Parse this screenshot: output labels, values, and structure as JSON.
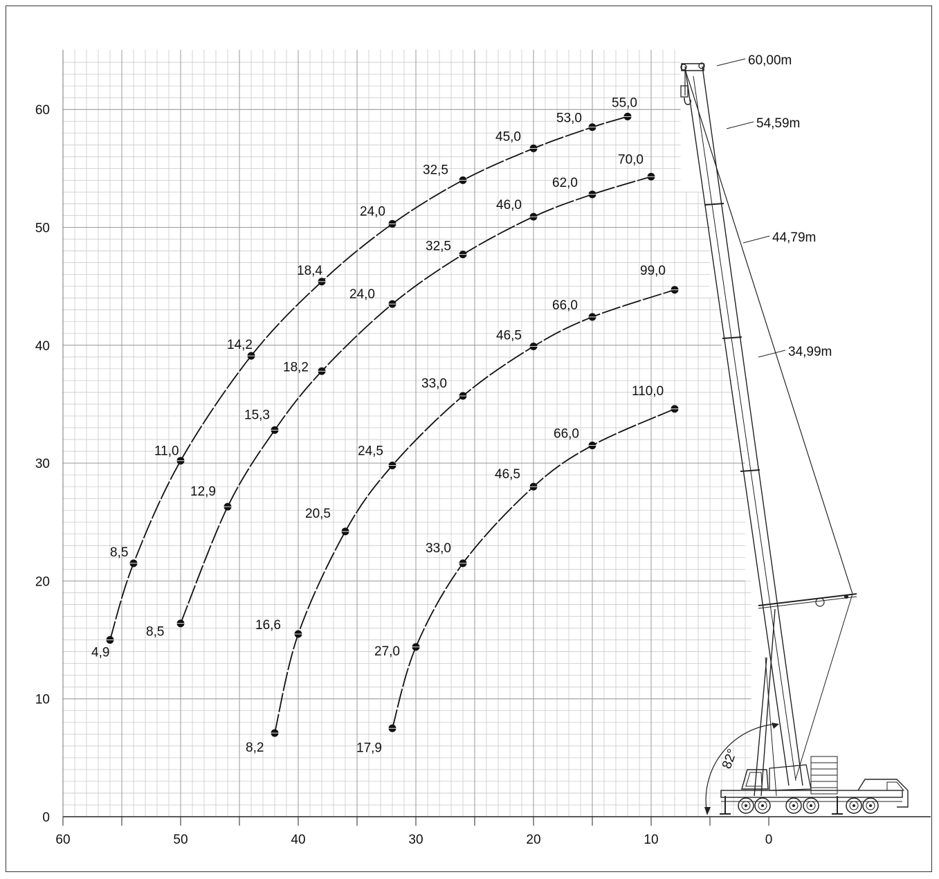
{
  "chart_data": {
    "type": "line",
    "title": "",
    "xlabel": "",
    "ylabel": "",
    "x_reversed": true,
    "xlim": [
      60,
      -1
    ],
    "ylim": [
      0,
      64
    ],
    "x_ticks": [
      "60",
      "50",
      "40",
      "30",
      "20",
      "10",
      "0"
    ],
    "y_ticks": [
      "0",
      "10",
      "20",
      "30",
      "40",
      "50",
      "60"
    ],
    "grid": true,
    "series": [
      {
        "boom_length": "60,00m",
        "points": [
          {
            "x": 56,
            "y": 15.0,
            "label": "4,9"
          },
          {
            "x": 54,
            "y": 21.5,
            "label": "8,5"
          },
          {
            "x": 50,
            "y": 30.2,
            "label": "11,0"
          },
          {
            "x": 44,
            "y": 39.1,
            "label": "14,2"
          },
          {
            "x": 38,
            "y": 45.4,
            "label": "18,4"
          },
          {
            "x": 32,
            "y": 50.3,
            "label": "24,0"
          },
          {
            "x": 26,
            "y": 54.0,
            "label": "32,5"
          },
          {
            "x": 20,
            "y": 56.7,
            "label": "45,0"
          },
          {
            "x": 15,
            "y": 58.5,
            "label": "53,0"
          },
          {
            "x": 12,
            "y": 59.4,
            "label": "55,0"
          }
        ]
      },
      {
        "boom_length": "54,59m",
        "points": [
          {
            "x": 50,
            "y": 16.4,
            "label": "8,5"
          },
          {
            "x": 46,
            "y": 26.3,
            "label": "12,9"
          },
          {
            "x": 42,
            "y": 32.8,
            "label": "15,3"
          },
          {
            "x": 38,
            "y": 37.8,
            "label": "18,2"
          },
          {
            "x": 32,
            "y": 43.5,
            "label": "24,0"
          },
          {
            "x": 26,
            "y": 47.7,
            "label": "32,5"
          },
          {
            "x": 20,
            "y": 50.9,
            "label": "46,0"
          },
          {
            "x": 15,
            "y": 52.8,
            "label": "62,0"
          },
          {
            "x": 10,
            "y": 54.3,
            "label": "70,0"
          }
        ]
      },
      {
        "boom_length": "44,79m",
        "points": [
          {
            "x": 42,
            "y": 7.1,
            "label": "8,2"
          },
          {
            "x": 40,
            "y": 15.5,
            "label": "16,6"
          },
          {
            "x": 36,
            "y": 24.2,
            "label": "20,5"
          },
          {
            "x": 32,
            "y": 29.8,
            "label": "24,5"
          },
          {
            "x": 26,
            "y": 35.7,
            "label": "33,0"
          },
          {
            "x": 20,
            "y": 39.9,
            "label": "46,5"
          },
          {
            "x": 15,
            "y": 42.4,
            "label": "66,0"
          },
          {
            "x": 8,
            "y": 44.7,
            "label": "99,0"
          }
        ]
      },
      {
        "boom_length": "34,99m",
        "points": [
          {
            "x": 32,
            "y": 7.5,
            "label": "17,9"
          },
          {
            "x": 30,
            "y": 14.4,
            "label": "27,0"
          },
          {
            "x": 26,
            "y": 21.5,
            "label": "33,0"
          },
          {
            "x": 20,
            "y": 28.0,
            "label": "46,5"
          },
          {
            "x": 15,
            "y": 31.5,
            "label": "66,0"
          },
          {
            "x": 8,
            "y": 34.6,
            "label": "110,0"
          }
        ]
      }
    ],
    "boom_length_labels": [
      "60,00m",
      "54,59m",
      "44,79m",
      "34,99m"
    ],
    "angle_label": "82°",
    "crane_icon": "mobile-crane-side-view"
  }
}
